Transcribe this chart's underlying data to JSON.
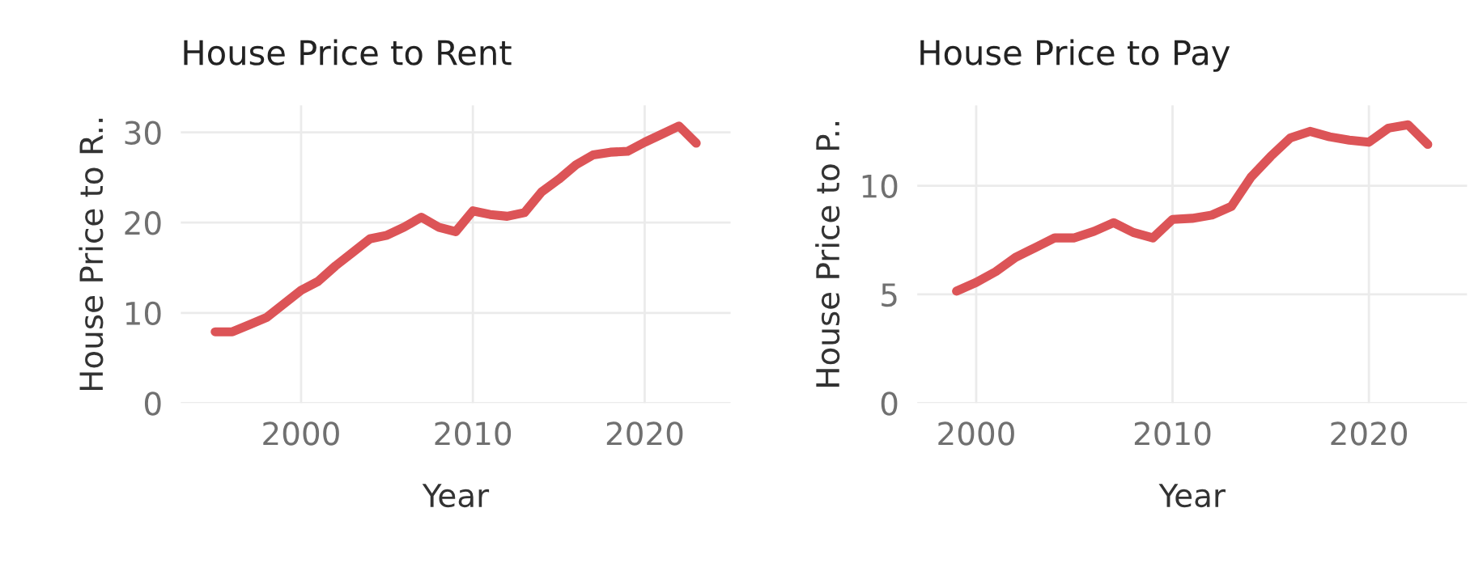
{
  "chart_data": [
    {
      "type": "line",
      "title": "House Price to Rent",
      "xlabel": "Year",
      "ylabel": "House Price to R..",
      "grid": true,
      "marker": "none",
      "line_style": "solid",
      "xlim": [
        1993,
        2025
      ],
      "xticks": [
        2000,
        2010,
        2020
      ],
      "ylim": [
        0,
        33
      ],
      "yticks": [
        0,
        10,
        20,
        30
      ],
      "x": [
        1995,
        1996,
        1997,
        1998,
        1999,
        2000,
        2001,
        2002,
        2003,
        2004,
        2005,
        2006,
        2007,
        2008,
        2009,
        2010,
        2011,
        2012,
        2013,
        2014,
        2015,
        2016,
        2017,
        2018,
        2019,
        2020,
        2021,
        2022,
        2023
      ],
      "series": [
        {
          "color": "#dc5457",
          "values": [
            7.9,
            7.9,
            8.7,
            9.5,
            11.0,
            12.5,
            13.5,
            15.2,
            16.7,
            18.2,
            18.6,
            19.5,
            20.6,
            19.5,
            19.0,
            21.3,
            20.9,
            20.7,
            21.1,
            23.4,
            24.8,
            26.4,
            27.5,
            27.8,
            27.9,
            28.9,
            29.8,
            30.7,
            28.8
          ]
        }
      ]
    },
    {
      "type": "line",
      "title": "House Price to Pay",
      "xlabel": "Year",
      "ylabel": "House Price to P..",
      "grid": true,
      "marker": "none",
      "line_style": "solid",
      "xlim": [
        1997,
        2025
      ],
      "xticks": [
        2000,
        2010,
        2020
      ],
      "ylim": [
        0,
        13.7
      ],
      "yticks": [
        0,
        5,
        10
      ],
      "x": [
        1999,
        2000,
        2001,
        2002,
        2003,
        2004,
        2005,
        2006,
        2007,
        2008,
        2009,
        2010,
        2011,
        2012,
        2013,
        2014,
        2015,
        2016,
        2017,
        2018,
        2019,
        2020,
        2021,
        2022,
        2023
      ],
      "series": [
        {
          "color": "#dc5457",
          "values": [
            5.15,
            5.55,
            6.05,
            6.7,
            7.15,
            7.6,
            7.6,
            7.9,
            8.3,
            7.85,
            7.6,
            8.45,
            8.5,
            8.65,
            9.05,
            10.4,
            11.35,
            12.2,
            12.5,
            12.25,
            12.1,
            12.0,
            12.65,
            12.8,
            11.9
          ]
        }
      ]
    }
  ]
}
